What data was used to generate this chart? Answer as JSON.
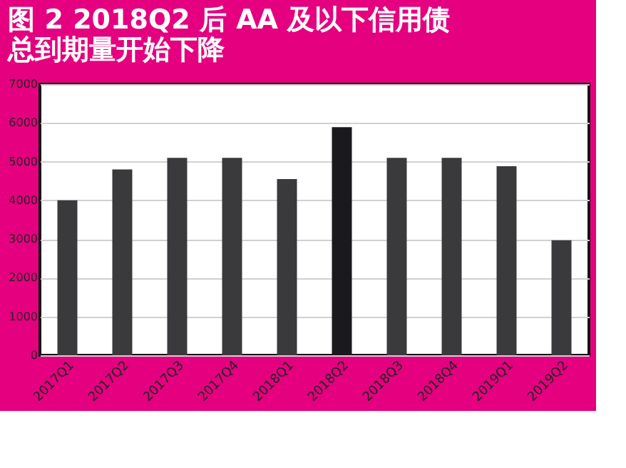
{
  "chart_data": {
    "type": "bar",
    "title": [
      "图 2   2018Q2 后 AA 及以下信用债",
      "总到期量开始下降"
    ],
    "categories": [
      "2017Q1",
      "2017Q2",
      "2017Q3",
      "2017Q4",
      "2018Q1",
      "2018Q2",
      "2018Q3",
      "2018Q4",
      "2019Q1",
      "2019Q2"
    ],
    "values": [
      4000,
      4800,
      5100,
      5100,
      4550,
      5890,
      5100,
      5100,
      4880,
      2970
    ],
    "colors": [
      "#3a3a3c",
      "#3a3a3c",
      "#3a3a3c",
      "#3a3a3c",
      "#3a3a3c",
      "#1a1a1e",
      "#3a3a3c",
      "#3a3a3c",
      "#3a3a3c",
      "#3a3a3c"
    ],
    "ylim": [
      0,
      7000
    ],
    "yticks": [
      0,
      1000,
      2000,
      3000,
      4000,
      5000,
      6000,
      7000
    ],
    "grid": "y"
  }
}
